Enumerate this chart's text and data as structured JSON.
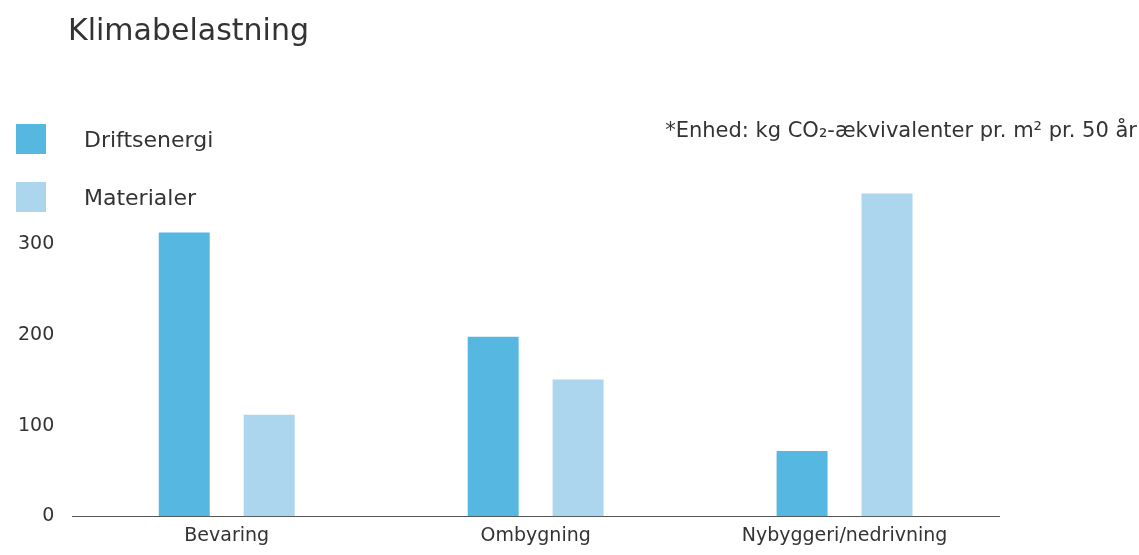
{
  "chart_data": {
    "type": "bar",
    "title": "Klimabelastning",
    "categories": [
      "Bevaring",
      "Ombygning",
      "Nybyggeri/nedrivning"
    ],
    "series": [
      {
        "name": "Driftsenergi",
        "color": "#56b8e1",
        "values": [
          313,
          198,
          72
        ]
      },
      {
        "name": "Materialer",
        "color": "#acd6ee",
        "values": [
          112,
          151,
          356
        ]
      }
    ],
    "ylim": [
      0,
      360
    ],
    "yticks": [
      0,
      100,
      200,
      300
    ],
    "grid": false,
    "legend": "top left",
    "annotations": [
      "*Enhed: kg CO₂-ækvivalenter pr. m² pr. 50 år"
    ]
  }
}
